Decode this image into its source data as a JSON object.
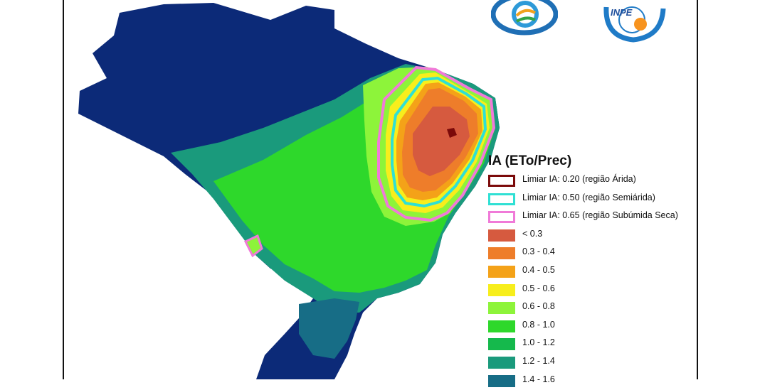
{
  "legend": {
    "title": "IA (ETo/Prec)",
    "thresholds": [
      {
        "label": "Limiar IA: 0.20 (região Árida)",
        "color": "#7b0a0a"
      },
      {
        "label": "Limiar IA: 0.50 (região Semiárida)",
        "color": "#2fe0d4"
      },
      {
        "label": "Limiar IA: 0.65 (região Subúmida Seca)",
        "color": "#f07ad8"
      }
    ],
    "classes": [
      {
        "label": "< 0.3",
        "color": "#d65a3f"
      },
      {
        "label": "0.3 - 0.4",
        "color": "#ee7d2a"
      },
      {
        "label": "0.4 - 0.5",
        "color": "#f4a218"
      },
      {
        "label": "0.5 - 0.6",
        "color": "#f7ee1c"
      },
      {
        "label": "0.6 - 0.8",
        "color": "#8df43a"
      },
      {
        "label": "0.8 - 1.0",
        "color": "#2ed82b"
      },
      {
        "label": "1.0 - 1.2",
        "color": "#15b94c"
      },
      {
        "label": "1.2 - 1.4",
        "color": "#1a9a7c"
      },
      {
        "label": "1.4 - 1.6",
        "color": "#176d86"
      }
    ]
  },
  "logos": [
    {
      "name": "cemaden-logo",
      "text": ""
    },
    {
      "name": "inpe-logo",
      "text": "INPE"
    }
  ],
  "map": {
    "dominant_color": "#0c2a78"
  }
}
